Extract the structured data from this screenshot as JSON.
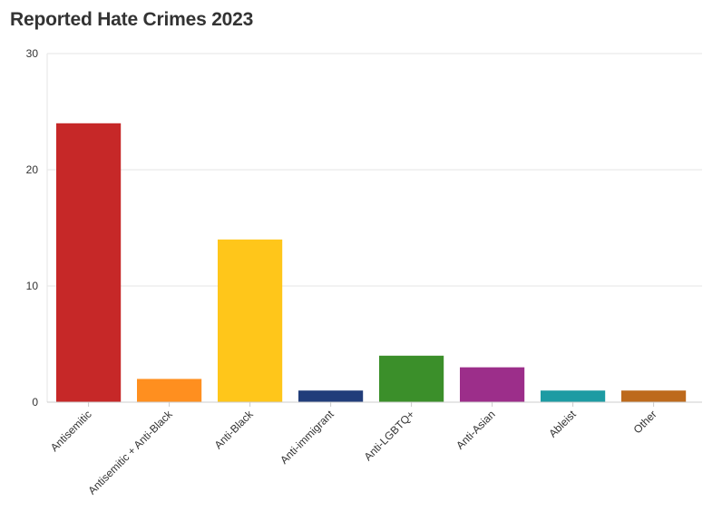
{
  "chart_data": {
    "type": "bar",
    "title": "Reported Hate Crimes 2023",
    "xlabel": "",
    "ylabel": "",
    "ylim": [
      0,
      30
    ],
    "yticks": [
      0,
      10,
      20,
      30
    ],
    "grid": true,
    "categories": [
      "Antisemitic",
      "Antisemitic + Anti-Black",
      "Anti-Black",
      "Anti-immigrant",
      "Anti-LGBTQ+",
      "Anti-Asian",
      "Ableist",
      "Other"
    ],
    "values": [
      24,
      2,
      14,
      1,
      4,
      3,
      1,
      1
    ],
    "colors": [
      "#c62828",
      "#ff8f1f",
      "#ffc61a",
      "#213d7a",
      "#3b8f2a",
      "#9c2e8a",
      "#1d9ba3",
      "#bd6a1c"
    ]
  }
}
